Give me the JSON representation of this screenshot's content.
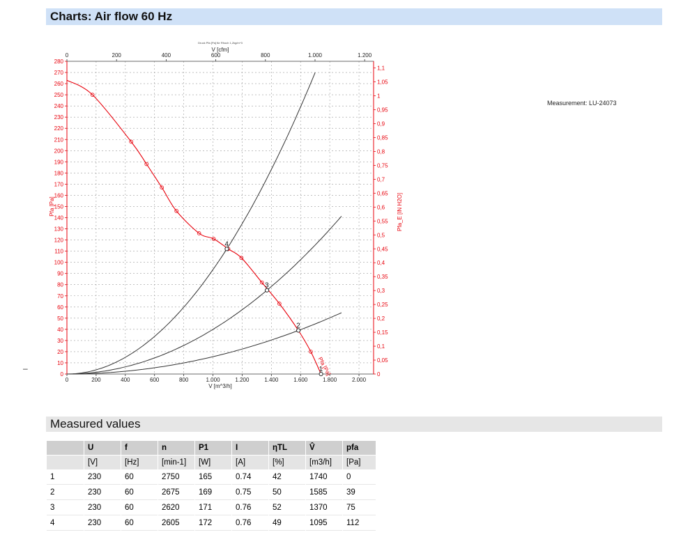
{
  "header": {
    "title": "Charts: Air flow 60 Hz"
  },
  "measurement_label": "Measurement: LU-24073",
  "left_mark": "–",
  "measured": {
    "title": "Measured values",
    "columns": [
      "",
      "U",
      "f",
      "n",
      "P1",
      "I",
      "ηTL",
      "V̂",
      "pfa"
    ],
    "units": [
      "",
      "[V]",
      "[Hz]",
      "[min-1]",
      "[W]",
      "[A]",
      "[%]",
      "[m3/h]",
      "[Pa]"
    ],
    "rows": [
      [
        "1",
        "230",
        "60",
        "2750",
        "165",
        "0.74",
        "42",
        "1740",
        "0"
      ],
      [
        "2",
        "230",
        "60",
        "2675",
        "169",
        "0.75",
        "50",
        "1585",
        "39"
      ],
      [
        "3",
        "230",
        "60",
        "2620",
        "171",
        "0.76",
        "52",
        "1370",
        "75"
      ],
      [
        "4",
        "230",
        "60",
        "2605",
        "172",
        "0.76",
        "49",
        "1095",
        "112"
      ]
    ]
  },
  "chart_data": {
    "type": "line",
    "top_caption": "Druck Pfa [Pa] für Rhoch 1,2kg/m^3",
    "xlabel": "V [m^3/h]",
    "x2label": "V [cfm]",
    "ylabel": "Pfa [Pa]",
    "y2label": "Pfa_E [IN H2O]",
    "xlim": [
      0,
      2100
    ],
    "ylim": [
      0,
      280
    ],
    "x_ticks": [
      0,
      200,
      400,
      600,
      800,
      1000,
      1200,
      1400,
      1600,
      1800,
      2000
    ],
    "x_tick_labels": [
      "0",
      "200",
      "400",
      "600",
      "800",
      "1.000",
      "1.200",
      "1.400",
      "1.600",
      "1.800",
      "2.000"
    ],
    "x2_ticks": [
      0,
      200,
      400,
      600,
      800,
      1000,
      1200
    ],
    "x2_tick_labels": [
      "0",
      "200",
      "400",
      "600",
      "800",
      "1.000",
      "1.200"
    ],
    "y_ticks": [
      0,
      10,
      20,
      30,
      40,
      50,
      60,
      70,
      80,
      90,
      100,
      110,
      120,
      130,
      140,
      150,
      160,
      170,
      180,
      190,
      200,
      210,
      220,
      230,
      240,
      250,
      260,
      270,
      280
    ],
    "y2_ticks": [
      0,
      0.05,
      0.1,
      0.15,
      0.2,
      0.25,
      0.3,
      0.35,
      0.4,
      0.45,
      0.5,
      0.55,
      0.6,
      0.65,
      0.7,
      0.75,
      0.8,
      0.85,
      0.9,
      0.95,
      1,
      1.05,
      1.1
    ],
    "y2_tick_labels": [
      "0",
      "0,05",
      "0,1",
      "0,15",
      "0,2",
      "0,25",
      "0,3",
      "0,35",
      "0,4",
      "0,45",
      "0,5",
      "0,55",
      "0,6",
      "0,65",
      "0,7",
      "0,75",
      "0,8",
      "0,85",
      "0,9",
      "0,95",
      "1",
      "1,05",
      "1,1"
    ],
    "grid": true,
    "pfa_curve": {
      "name": "Pfa [Pa]",
      "color": "#e8000b",
      "x": [
        0,
        175,
        440,
        545,
        650,
        750,
        905,
        1005,
        1105,
        1195,
        1335,
        1455,
        1585,
        1670,
        1740
      ],
      "y": [
        263,
        250,
        208,
        188,
        167,
        146,
        126,
        121,
        112,
        104,
        82,
        63,
        39,
        20,
        0
      ]
    },
    "system_curves": [
      {
        "label": "4",
        "color": "#333333",
        "k": 9.342e-05,
        "x_end": 1700
      },
      {
        "label": "3",
        "color": "#333333",
        "k": 3.996e-05,
        "x_end": 1890
      },
      {
        "label": "2",
        "color": "#333333",
        "k": 1.552e-05,
        "x_end": 1890
      }
    ],
    "operating_points": [
      {
        "label": "1",
        "x": 1740,
        "y": 0
      },
      {
        "label": "2",
        "x": 1585,
        "y": 39
      },
      {
        "label": "3",
        "x": 1370,
        "y": 75
      },
      {
        "label": "4",
        "x": 1095,
        "y": 112
      }
    ],
    "annotation": "Pfa [Pa]"
  }
}
